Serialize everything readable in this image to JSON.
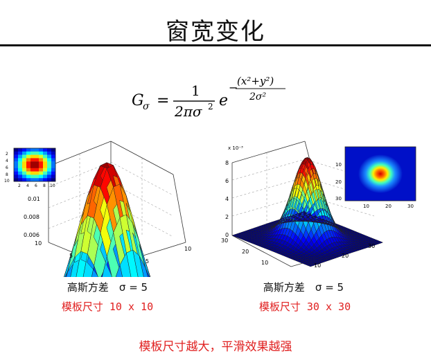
{
  "title": "窗宽变化",
  "formula": {
    "lhs": "G",
    "lhs_sub": "σ",
    "equals": "=",
    "numerator": "1",
    "denominator_pi": "2πσ",
    "denominator_sup": "2",
    "base": "e",
    "exponent_num": "(x²+y²)",
    "exponent_den": "2σ²",
    "minus": "−"
  },
  "left_panel": {
    "caption_black": "高斯方差　σ = 5",
    "caption_red": "模板尺寸 10 x 10",
    "z_ticks": [
      "0.01",
      "0.008",
      "0.006"
    ],
    "x_ticks": [
      "5",
      "10"
    ],
    "y_ticks": [
      "10",
      "5"
    ],
    "inset_ticks_x": [
      "2",
      "4",
      "6",
      "8",
      "10"
    ],
    "inset_ticks_y": [
      "2",
      "4",
      "6",
      "8",
      "10"
    ]
  },
  "right_panel": {
    "caption_black": "高斯方差　σ = 5",
    "caption_red": "模板尺寸 30 x 30",
    "scale_label": "x 10⁻³",
    "z_ticks": [
      "8",
      "6",
      "4",
      "2",
      "0"
    ],
    "x_ticks": [
      "10",
      "20",
      "30"
    ],
    "y_ticks": [
      "30",
      "20",
      "10"
    ],
    "inset_ticks_x": [
      "10",
      "20",
      "30"
    ],
    "inset_ticks_y": [
      "10",
      "20",
      "30"
    ]
  },
  "footer": "模板尺寸越大，平滑效果越强",
  "colors": {
    "accent_red": "#e02020",
    "text": "#111111"
  }
}
